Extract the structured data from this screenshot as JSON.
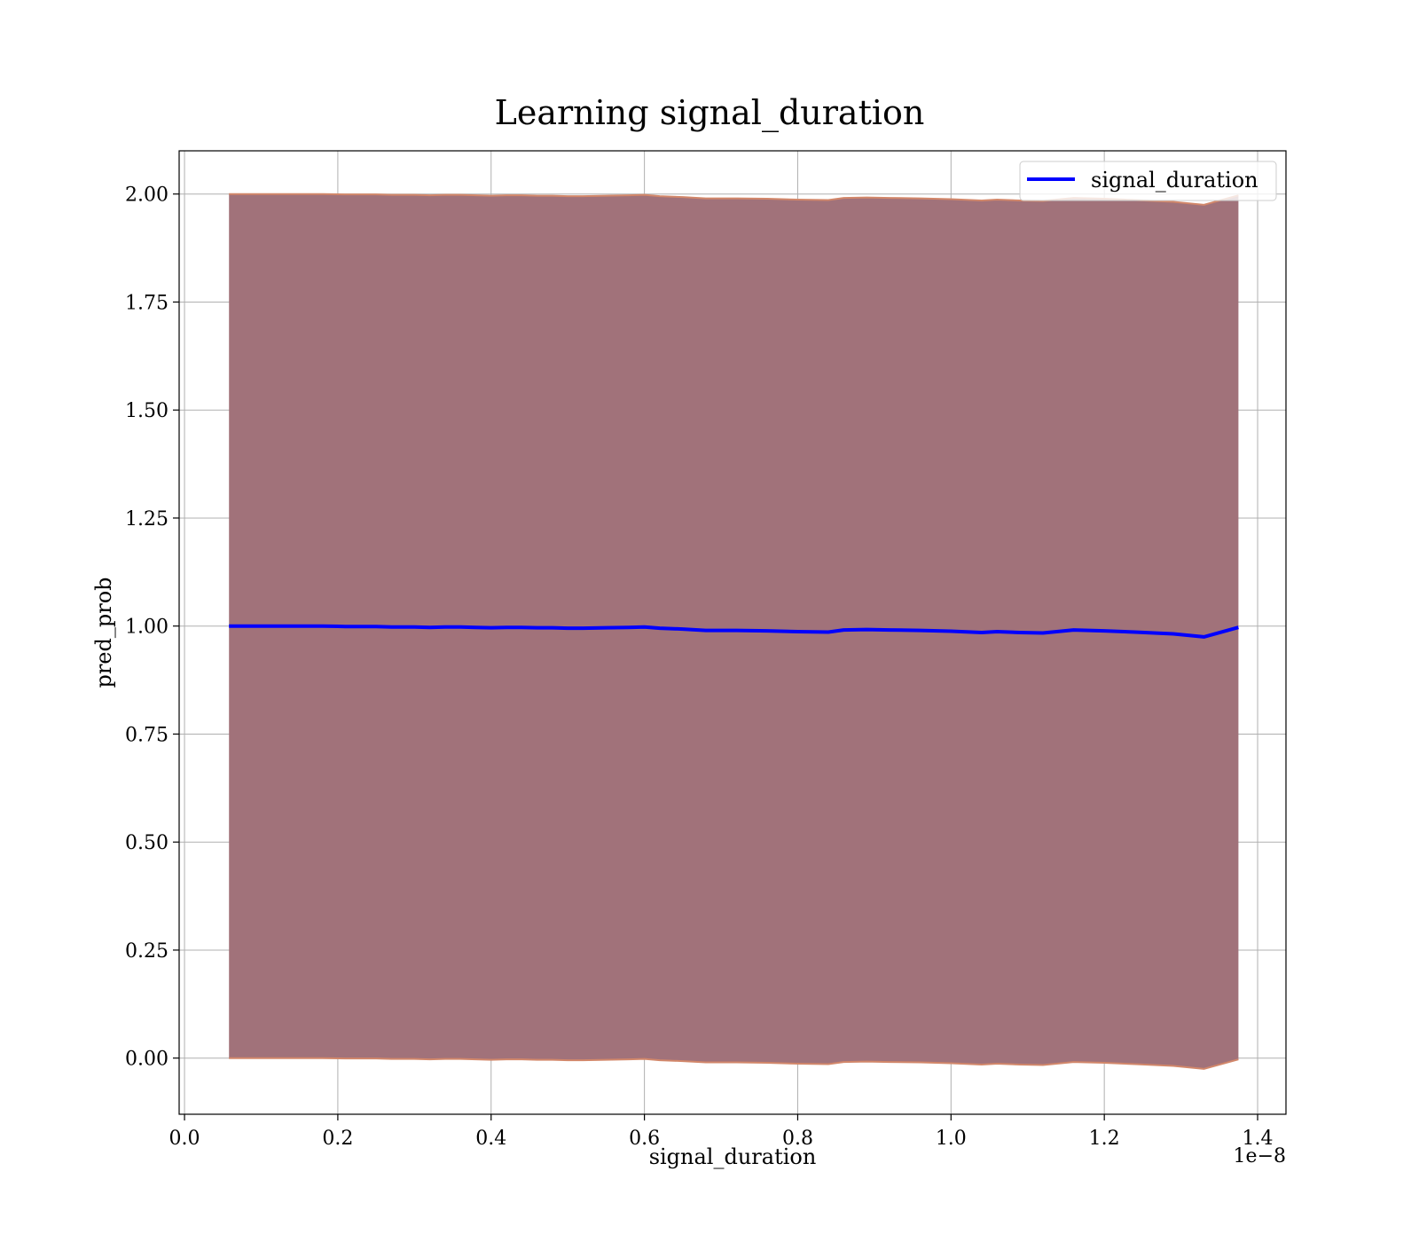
{
  "chart_data": {
    "type": "line",
    "title": "Learning signal_duration",
    "xlabel": "signal_duration",
    "ylabel": "pred_prob",
    "x_offset_label": "1e−8",
    "xlim": [
      -0.007,
      1.437
    ],
    "ylim": [
      -0.13,
      2.1
    ],
    "x_ticks": [
      0.0,
      0.2,
      0.4,
      0.6,
      0.8,
      1.0,
      1.2,
      1.4
    ],
    "x_tick_labels": [
      "0.0",
      "0.2",
      "0.4",
      "0.6",
      "0.8",
      "1.0",
      "1.2",
      "1.4"
    ],
    "y_ticks": [
      0.0,
      0.25,
      0.5,
      0.75,
      1.0,
      1.25,
      1.5,
      1.75,
      2.0
    ],
    "y_tick_labels": [
      "0.00",
      "0.25",
      "0.50",
      "0.75",
      "1.00",
      "1.25",
      "1.50",
      "1.75",
      "2.00"
    ],
    "grid": true,
    "legend_position": "top-right",
    "colors": {
      "line": "#0000ff",
      "band_fill": "#a1727a",
      "band_edge": "#d2876a"
    },
    "series": [
      {
        "name": "signal_duration",
        "x": [
          0.058,
          0.07,
          0.09,
          0.12,
          0.15,
          0.18,
          0.21,
          0.23,
          0.25,
          0.27,
          0.3,
          0.32,
          0.34,
          0.36,
          0.38,
          0.4,
          0.42,
          0.44,
          0.46,
          0.48,
          0.5,
          0.52,
          0.55,
          0.58,
          0.6,
          0.62,
          0.65,
          0.68,
          0.72,
          0.76,
          0.8,
          0.84,
          0.86,
          0.89,
          0.92,
          0.96,
          1.0,
          1.04,
          1.06,
          1.09,
          1.12,
          1.16,
          1.2,
          1.24,
          1.29,
          1.33,
          1.375
        ],
        "y": [
          1.0,
          1.0,
          1.0,
          1.0,
          1.0,
          1.0,
          0.999,
          0.999,
          0.999,
          0.998,
          0.998,
          0.997,
          0.998,
          0.998,
          0.997,
          0.996,
          0.997,
          0.997,
          0.996,
          0.996,
          0.995,
          0.995,
          0.996,
          0.997,
          0.998,
          0.995,
          0.993,
          0.99,
          0.99,
          0.989,
          0.987,
          0.986,
          0.991,
          0.992,
          0.991,
          0.99,
          0.988,
          0.985,
          0.987,
          0.985,
          0.984,
          0.991,
          0.989,
          0.986,
          0.982,
          0.975,
          0.997
        ],
        "band_lower": [
          0.0,
          0.0,
          0.0,
          0.0,
          0.0,
          0.0,
          -0.001,
          -0.001,
          -0.001,
          -0.002,
          -0.002,
          -0.003,
          -0.002,
          -0.002,
          -0.003,
          -0.004,
          -0.003,
          -0.003,
          -0.004,
          -0.004,
          -0.005,
          -0.005,
          -0.004,
          -0.003,
          -0.002,
          -0.005,
          -0.007,
          -0.01,
          -0.01,
          -0.011,
          -0.013,
          -0.014,
          -0.009,
          -0.008,
          -0.009,
          -0.01,
          -0.012,
          -0.015,
          -0.013,
          -0.015,
          -0.016,
          -0.009,
          -0.011,
          -0.014,
          -0.018,
          -0.025,
          -0.003
        ],
        "band_upper": [
          2.0,
          2.0,
          2.0,
          2.0,
          2.0,
          2.0,
          1.999,
          1.999,
          1.999,
          1.998,
          1.998,
          1.997,
          1.998,
          1.998,
          1.997,
          1.996,
          1.997,
          1.997,
          1.996,
          1.996,
          1.995,
          1.995,
          1.996,
          1.997,
          1.998,
          1.995,
          1.993,
          1.99,
          1.99,
          1.989,
          1.987,
          1.986,
          1.991,
          1.992,
          1.991,
          1.99,
          1.988,
          1.985,
          1.987,
          1.985,
          1.984,
          1.991,
          1.989,
          1.986,
          1.982,
          1.975,
          1.997
        ]
      }
    ]
  }
}
